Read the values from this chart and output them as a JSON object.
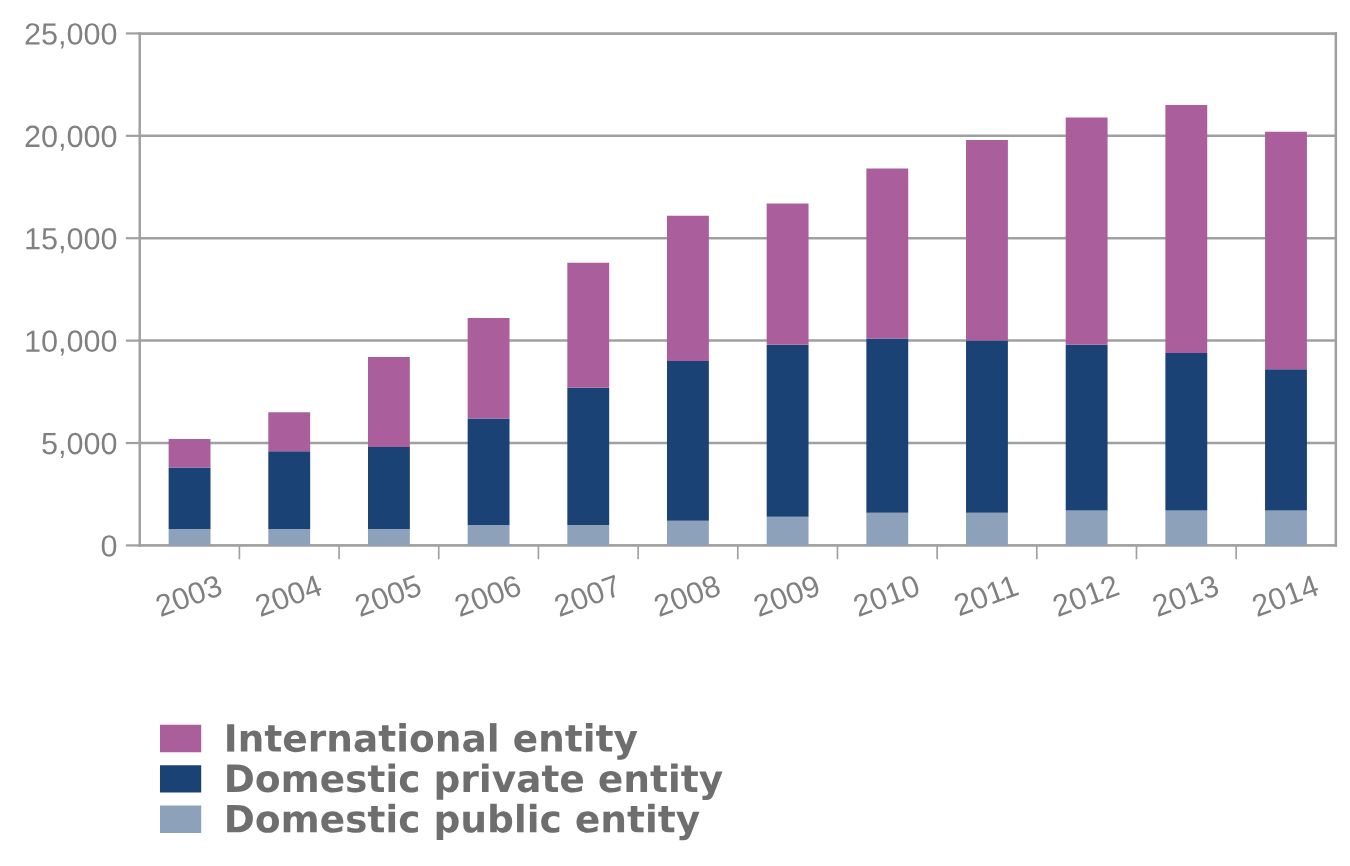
{
  "chart_data": {
    "type": "bar",
    "stacked": true,
    "categories": [
      "2003",
      "2004",
      "2005",
      "2006",
      "2007",
      "2008",
      "2009",
      "2010",
      "2011",
      "2012",
      "2013",
      "2014"
    ],
    "series": [
      {
        "name": "Domestic public entity",
        "color": "#8da1bb",
        "values": [
          800,
          800,
          800,
          1000,
          1000,
          1200,
          1400,
          1600,
          1600,
          1700,
          1700,
          1700
        ]
      },
      {
        "name": "Domestic private entity",
        "color": "#1b4275",
        "values": [
          3000,
          3800,
          4000,
          5200,
          6700,
          7800,
          8400,
          8500,
          8400,
          8100,
          7700,
          6900
        ]
      },
      {
        "name": "International entity",
        "color": "#aa5f9c",
        "values": [
          1400,
          1900,
          4400,
          4900,
          6100,
          7100,
          6900,
          8300,
          9800,
          11100,
          12100,
          11600
        ]
      }
    ],
    "ylim": [
      0,
      25000
    ],
    "yticks": [
      0,
      {
        "value": 5000,
        "label": "5,000"
      },
      {
        "value": 10000,
        "label": "10,000"
      },
      {
        "value": 15000,
        "label": "15,000"
      },
      {
        "value": 20000,
        "label": "20,000"
      },
      {
        "value": 25000,
        "label": "25,000"
      }
    ],
    "grid": "y",
    "legend": "bottom"
  }
}
